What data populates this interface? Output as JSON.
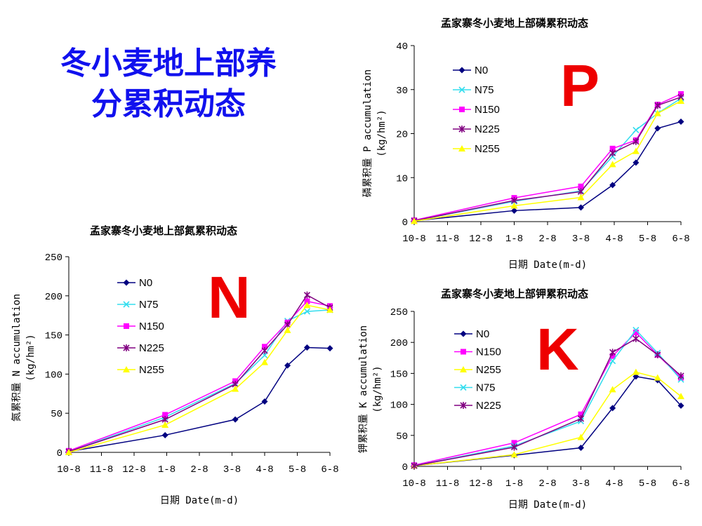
{
  "slide": {
    "title_line1": "冬小麦地上部养",
    "title_line2": "分累积动态"
  },
  "colors": {
    "title": "#1111ee",
    "big_letter": "#ee0000",
    "N0": "#000080",
    "N75": "#33ddee",
    "N150": "#ff00ff",
    "N225": "#800080",
    "N255": "#ffff00"
  },
  "chart_data": [
    {
      "id": "P",
      "type": "line",
      "title": "孟家寨冬小麦地上部磷累积动态",
      "big_letter": "P",
      "xlabel": "日期 Date(m-d)",
      "ylabel_line1": "磷累积量 P accumulation",
      "ylabel_line2": "(kg/hm²)",
      "ylim": [
        0,
        40
      ],
      "yticks": [
        "0",
        "10",
        "20",
        "30",
        "40"
      ],
      "categories": [
        "10-8",
        "11-8",
        "12-8",
        "1-8",
        "2-8",
        "3-8",
        "4-8",
        "5-8",
        "6-8"
      ],
      "series": [
        {
          "name": "N0",
          "marker": "diamond",
          "x": [
            0,
            3,
            5,
            5.95,
            6.65,
            7.3,
            8
          ],
          "values": [
            0.2,
            2.5,
            3.2,
            8.3,
            13.4,
            21.2,
            22.7
          ]
        },
        {
          "name": "N75",
          "marker": "x",
          "x": [
            0,
            3,
            5,
            5.95,
            6.65,
            7.3,
            8
          ],
          "values": [
            0.2,
            4.6,
            7.0,
            14.8,
            20.8,
            24.6,
            28.0
          ]
        },
        {
          "name": "N150",
          "marker": "square",
          "x": [
            0,
            3,
            5,
            5.95,
            6.65,
            7.3,
            8
          ],
          "values": [
            0.3,
            5.4,
            8.0,
            16.6,
            18.5,
            26.6,
            29.0
          ]
        },
        {
          "name": "N225",
          "marker": "star",
          "x": [
            0,
            3,
            5,
            5.95,
            6.65,
            7.3,
            8
          ],
          "values": [
            0.2,
            4.8,
            6.8,
            15.6,
            18.2,
            26.4,
            28.3
          ]
        },
        {
          "name": "N255",
          "marker": "triangle",
          "x": [
            0,
            3,
            5,
            5.95,
            6.65,
            7.3,
            8
          ],
          "values": [
            0.1,
            3.6,
            5.5,
            13.0,
            16.0,
            24.6,
            27.4
          ]
        }
      ]
    },
    {
      "id": "N",
      "type": "line",
      "title": "孟家寨冬小麦地上部氮累积动态",
      "big_letter": "N",
      "xlabel": "日期 Date(m-d)",
      "ylabel_line1": "氮累积量 N accumulation",
      "ylabel_line2": "(kg/hm²)",
      "ylim": [
        0,
        250
      ],
      "yticks": [
        "0",
        "50",
        "100",
        "150",
        "200",
        "250"
      ],
      "categories": [
        "10-8",
        "11-8",
        "12-8",
        "1-8",
        "2-8",
        "3-8",
        "4-8",
        "5-8",
        "6-8"
      ],
      "series": [
        {
          "name": "N0",
          "marker": "diamond",
          "x": [
            0,
            2.95,
            5.1,
            6.0,
            6.7,
            7.3,
            8
          ],
          "values": [
            1,
            22,
            42,
            65,
            111,
            134,
            133
          ]
        },
        {
          "name": "N75",
          "marker": "x",
          "x": [
            0,
            2.95,
            5.1,
            6.0,
            6.7,
            7.3,
            8
          ],
          "values": [
            1,
            45,
            88,
            124,
            168,
            180,
            182
          ]
        },
        {
          "name": "N150",
          "marker": "square",
          "x": [
            0,
            2.95,
            5.1,
            6.0,
            6.7,
            7.3,
            8
          ],
          "values": [
            2,
            48,
            91,
            135,
            166,
            193,
            187
          ]
        },
        {
          "name": "N225",
          "marker": "star",
          "x": [
            0,
            2.95,
            5.1,
            6.0,
            6.7,
            7.3,
            8
          ],
          "values": [
            1,
            42,
            87,
            130,
            163,
            201,
            185
          ]
        },
        {
          "name": "N255",
          "marker": "triangle",
          "x": [
            0,
            2.95,
            5.1,
            6.0,
            6.7,
            7.3,
            8
          ],
          "values": [
            0,
            35,
            81,
            115,
            156,
            188,
            182
          ]
        }
      ]
    },
    {
      "id": "K",
      "type": "line",
      "title": "孟家寨冬小麦地上部钾累积动态",
      "big_letter": "K",
      "xlabel": "日期 Date(m-d)",
      "ylabel_line1": "钾累积量 K accumulation",
      "ylabel_line2": "(kg/hm²)",
      "ylim": [
        0,
        250
      ],
      "yticks": [
        "0",
        "50",
        "100",
        "150",
        "200",
        "250"
      ],
      "categories": [
        "10-8",
        "11-8",
        "12-8",
        "1-8",
        "2-8",
        "3-8",
        "4-8",
        "5-8",
        "6-8"
      ],
      "series": [
        {
          "name": "N0",
          "marker": "diamond",
          "x": [
            0,
            3,
            5,
            5.95,
            6.65,
            7.3,
            8
          ],
          "values": [
            1,
            18,
            30,
            94,
            145,
            139,
            98
          ]
        },
        {
          "name": "N150",
          "marker": "square",
          "x": [
            0,
            3,
            5,
            5.95,
            6.65,
            7.3,
            8
          ],
          "values": [
            2,
            38,
            84,
            178,
            216,
            180,
            143
          ]
        },
        {
          "name": "N255",
          "marker": "triangle",
          "x": [
            0,
            3,
            5,
            5.95,
            6.65,
            7.3,
            8
          ],
          "values": [
            1,
            19,
            47,
            124,
            152,
            143,
            113
          ]
        },
        {
          "name": "N75",
          "marker": "x",
          "x": [
            0,
            3,
            5,
            5.95,
            6.65,
            7.3,
            8
          ],
          "values": [
            1,
            33,
            73,
            170,
            220,
            183,
            140
          ]
        },
        {
          "name": "N225",
          "marker": "star",
          "x": [
            0,
            3,
            5,
            5.95,
            6.65,
            7.3,
            8
          ],
          "values": [
            1,
            31,
            77,
            184,
            206,
            180,
            146
          ]
        }
      ]
    }
  ]
}
